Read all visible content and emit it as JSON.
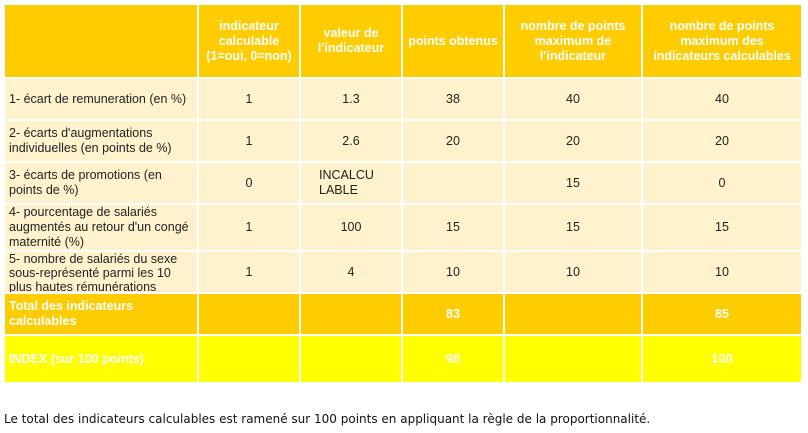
{
  "headers": [
    "",
    "indicateur calculable (1=oui, 0=non)",
    "valeur de l'indicateur",
    "points obtenus",
    "nombre de points maximum de l'indicateur",
    "nombre de points maximum des indicateurs calculables"
  ],
  "rows": [
    {
      "label": "1- écart de remuneration (en %)",
      "calculable": "1",
      "valeur": "1.3",
      "points": "38",
      "max": "40",
      "max_calc": "40"
    },
    {
      "label": "2- écarts d'augmentations individuelles (en points de %)",
      "calculable": "1",
      "valeur": "2.6",
      "points": "20",
      "max": "20",
      "max_calc": "20"
    },
    {
      "label": "3- écarts de promotions (en points de %)",
      "calculable": "0",
      "valeur": "INCALCU LABLE",
      "points": "",
      "max": "15",
      "max_calc": "0"
    },
    {
      "label": "4- pourcentage de salariés augmentés au retour d'un congé maternité (%)",
      "calculable": "1",
      "valeur": "100",
      "points": "15",
      "max": "15",
      "max_calc": "15"
    },
    {
      "label": "5- nombre de salariés du sexe sous-représenté parmi les 10 plus hautes rémunérations",
      "calculable": "1",
      "valeur": "4",
      "points": "10",
      "max": "10",
      "max_calc": "10"
    }
  ],
  "total": {
    "label": "Total des indicateurs calculables",
    "points": "83",
    "max_calc": "85"
  },
  "index": {
    "label": "INDEX (sur 100 points)",
    "points": "98",
    "max_calc": "100"
  },
  "footnote": "Le total des indicateurs calculables est ramené sur 100 points en appliquant la règle de la proportionnalité.",
  "colors": {
    "header": "#ffcc00",
    "row": "#fff2cc",
    "index": "#ffff00",
    "header_text": "#ffffff"
  }
}
